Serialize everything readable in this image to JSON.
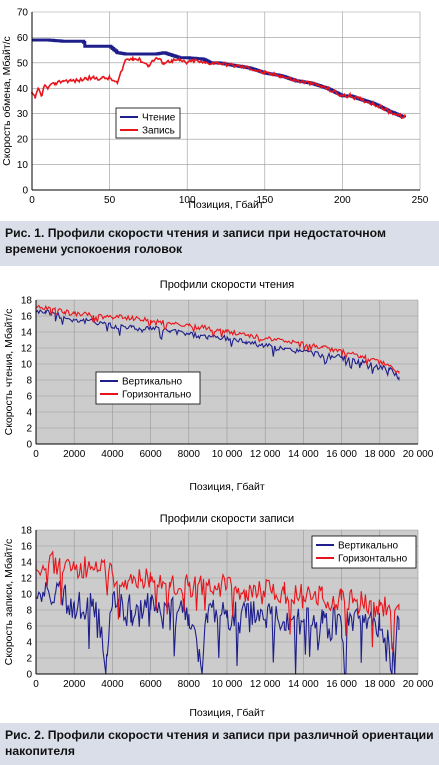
{
  "figure1": {
    "caption": "Рис. 1. Профили скорости чтения и записи при недостаточном времени успокоения головок"
  },
  "figure2": {
    "caption": "Рис. 2. Профили скорости чтения и записи при различной ориентации накопителя"
  },
  "colors": {
    "blue": "#1f1f8c",
    "red": "#e8141b",
    "grid": "#999999",
    "axis": "#000000",
    "caption_bg": "#d9dee9"
  },
  "chart_data": [
    {
      "type": "line",
      "title": "",
      "xlabel": "Позиция, Гбайт",
      "ylabel": "Скорость обмена, Мбайт/с",
      "xlim": [
        0,
        250
      ],
      "ylim": [
        0,
        70
      ],
      "xticks": [
        0,
        50,
        100,
        150,
        200,
        250
      ],
      "yticks": [
        0,
        10,
        20,
        30,
        40,
        50,
        60,
        70
      ],
      "legend_position": "center-left",
      "grid": true,
      "series": [
        {
          "name": "Чтение",
          "color": "#1f1f8c",
          "x": [
            0,
            10,
            20,
            33,
            34,
            50,
            55,
            60,
            70,
            80,
            85,
            95,
            100,
            110,
            115,
            120,
            130,
            140,
            150,
            160,
            170,
            180,
            190,
            200,
            205,
            210,
            220,
            230,
            240
          ],
          "y": [
            59,
            59,
            58.5,
            58.5,
            56.5,
            56.5,
            54,
            53.5,
            53.5,
            53.5,
            54,
            52,
            52,
            51.5,
            50,
            50,
            49,
            48,
            46,
            45,
            43,
            42,
            40,
            37,
            37,
            36,
            34,
            31,
            28.5
          ]
        },
        {
          "name": "Запись",
          "color": "#e8141b",
          "x": [
            0,
            2,
            4,
            6,
            8,
            10,
            15,
            20,
            25,
            30,
            35,
            40,
            45,
            50,
            55,
            58,
            60,
            65,
            70,
            75,
            80,
            85,
            90,
            95,
            100,
            105,
            110,
            120,
            130,
            140,
            150,
            160,
            170,
            180,
            190,
            200,
            205,
            210,
            220,
            230,
            240
          ],
          "y": [
            38,
            36,
            40,
            37,
            41,
            40,
            42,
            43,
            43,
            43,
            44,
            44,
            44,
            44,
            42,
            47,
            51,
            52,
            51,
            49,
            52,
            50,
            51,
            51,
            50,
            51,
            50,
            50,
            49,
            48,
            46,
            45,
            43,
            42,
            40,
            37,
            37,
            36,
            34,
            31,
            28.5
          ]
        }
      ]
    },
    {
      "type": "line",
      "title": "Профили скорости чтения",
      "xlabel": "Позиция, Гбайт",
      "ylabel": "Скорость чтения, Мбайт/с",
      "xlim": [
        0,
        20000
      ],
      "ylim": [
        0,
        18
      ],
      "xticks": [
        0,
        2000,
        4000,
        6000,
        8000,
        10000,
        12000,
        14000,
        16000,
        18000,
        20000
      ],
      "xtick_labels": [
        "0",
        "2000",
        "4000",
        "6000",
        "8000",
        "10 000",
        "12 000",
        "14 000",
        "16 000",
        "18 000",
        "20 000"
      ],
      "yticks": [
        0,
        2,
        4,
        6,
        8,
        10,
        12,
        14,
        16,
        18
      ],
      "legend_position": "center-left",
      "grid": true,
      "series": [
        {
          "name": "Вертикально",
          "color": "#1f1f8c",
          "x": [
            0,
            500,
            1000,
            1500,
            2000,
            3000,
            3800,
            4000,
            4500,
            5000,
            5500,
            6000,
            7000,
            8000,
            8500,
            9000,
            10000,
            11000,
            12000,
            13000,
            14000,
            15000,
            16000,
            17000,
            18000,
            18500,
            19000
          ],
          "y": [
            16.5,
            16.6,
            16.3,
            15.8,
            15.5,
            15.3,
            15.1,
            14.5,
            14.8,
            14.6,
            14.3,
            14.5,
            14.1,
            13.8,
            13.5,
            13.4,
            13.2,
            12.8,
            12.3,
            11.8,
            11.6,
            11.1,
            10.8,
            10.2,
            9.6,
            9.3,
            8.4
          ]
        },
        {
          "name": "Горизонтально",
          "color": "#e8141b",
          "x": [
            0,
            500,
            1000,
            1500,
            2000,
            3000,
            4000,
            4500,
            5000,
            6000,
            7000,
            8000,
            8500,
            9000,
            10000,
            11000,
            12000,
            13000,
            14000,
            15000,
            16000,
            17000,
            18000,
            18500,
            19000
          ],
          "y": [
            17,
            17.1,
            17,
            16.5,
            16.3,
            16.1,
            15.8,
            15.9,
            15.7,
            15.5,
            15.1,
            14.8,
            14.6,
            14.5,
            14,
            13.6,
            13.2,
            12.8,
            12.5,
            12.1,
            11.6,
            11,
            10.2,
            9.8,
            8.8
          ]
        }
      ]
    },
    {
      "type": "line",
      "title": "Профили скорости записи",
      "xlabel": "Позиция, Гбайт",
      "ylabel": "Скорость записи, Мбайт/с",
      "xlim": [
        0,
        20000
      ],
      "ylim": [
        0,
        18
      ],
      "xticks": [
        0,
        2000,
        4000,
        6000,
        8000,
        10000,
        12000,
        14000,
        16000,
        18000,
        20000
      ],
      "xtick_labels": [
        "0",
        "2000",
        "4000",
        "6000",
        "8000",
        "10 000",
        "12 000",
        "14 000",
        "16 000",
        "18 000",
        "20 000"
      ],
      "yticks": [
        0,
        2,
        4,
        6,
        8,
        10,
        12,
        14,
        16,
        18
      ],
      "legend_position": "top-right",
      "grid": true,
      "series": [
        {
          "name": "Вертикально",
          "color": "#1f1f8c",
          "x": [
            0,
            1000,
            2000,
            3000,
            3700,
            4000,
            5000,
            6000,
            7000,
            8000,
            8500,
            9000,
            10000,
            11000,
            12000,
            13000,
            14000,
            15000,
            16000,
            17000,
            18000,
            19000
          ],
          "y": [
            9.5,
            10,
            9,
            8.5,
            2.5,
            8.5,
            8,
            8,
            7.5,
            7.5,
            1.5,
            7.5,
            7,
            7,
            6.8,
            6.5,
            6.5,
            6.3,
            6,
            6,
            5.5,
            5.5
          ]
        },
        {
          "name": "Горизонтально",
          "color": "#e8141b",
          "x": [
            0,
            1000,
            2000,
            3000,
            4000,
            5000,
            6000,
            7000,
            8000,
            9000,
            10000,
            11000,
            12000,
            13000,
            14000,
            15000,
            16000,
            17000,
            18000,
            19000
          ],
          "y": [
            13,
            14,
            13.5,
            13,
            12.5,
            12,
            11.5,
            11.5,
            11,
            11,
            10.8,
            10.5,
            10.2,
            10,
            9.8,
            9.5,
            9.2,
            9,
            8.5,
            8
          ]
        }
      ]
    }
  ]
}
